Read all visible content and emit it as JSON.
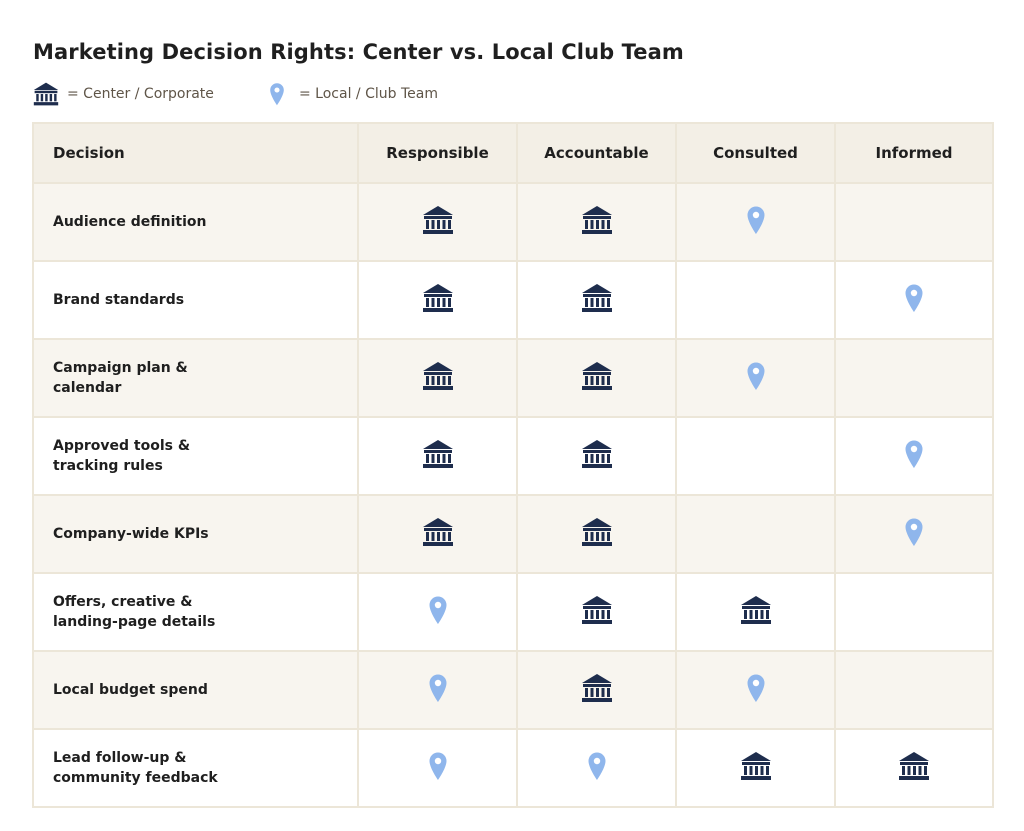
{
  "title": "Marketing Decision Rights: Center vs. Local Club Team",
  "legend": [
    {
      "icon": "center-corporate-icon",
      "label": "= Center / Corporate"
    },
    {
      "icon": "local-club-team-icon",
      "label": "= Local / Club Team"
    }
  ],
  "colors": {
    "center": "#1e2d4d",
    "local": "#8fb6ec",
    "header_bg": "#f3efe6",
    "row_alt_bg": "#f8f5ef",
    "border": "#ece6d8"
  },
  "columns": [
    "Decision",
    "Responsible",
    "Accountable",
    "Consulted",
    "Informed"
  ],
  "rows": [
    {
      "decision": "Audience definition",
      "responsible": "center",
      "accountable": "center",
      "consulted": "local",
      "informed": ""
    },
    {
      "decision": "Brand standards",
      "responsible": "center",
      "accountable": "center",
      "consulted": "",
      "informed": "local"
    },
    {
      "decision": "Campaign plan & calendar",
      "responsible": "center",
      "accountable": "center",
      "consulted": "local",
      "informed": ""
    },
    {
      "decision": "Approved tools & tracking rules",
      "responsible": "center",
      "accountable": "center",
      "consulted": "",
      "informed": "local"
    },
    {
      "decision": "Company-wide KPIs",
      "responsible": "center",
      "accountable": "center",
      "consulted": "",
      "informed": "local"
    },
    {
      "decision": "Offers, creative & landing-page details",
      "responsible": "local",
      "accountable": "center",
      "consulted": "center",
      "informed": ""
    },
    {
      "decision": "Local budget spend",
      "responsible": "local",
      "accountable": "center",
      "consulted": "local",
      "informed": ""
    },
    {
      "decision": "Lead follow-up & community feedback",
      "responsible": "local",
      "accountable": "local",
      "consulted": "center",
      "informed": "center"
    }
  ]
}
